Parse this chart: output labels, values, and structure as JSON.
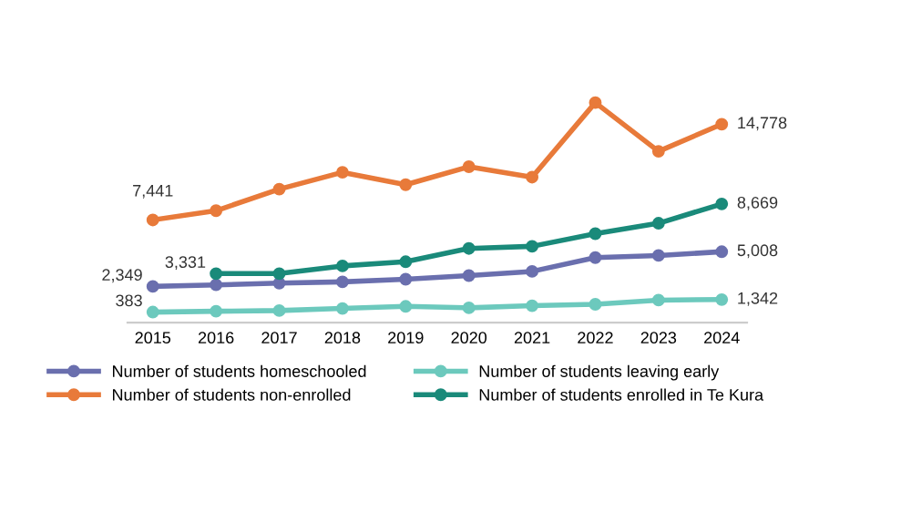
{
  "chart_data": {
    "type": "line",
    "categories": [
      "2015",
      "2016",
      "2017",
      "2018",
      "2019",
      "2020",
      "2021",
      "2022",
      "2023",
      "2024"
    ],
    "series": [
      {
        "name": "Number of students homeschooled",
        "color": "#6a6fae",
        "values": [
          2349,
          2470,
          2600,
          2700,
          2900,
          3180,
          3500,
          4560,
          4720,
          5008
        ],
        "value_labels": [
          "2,349",
          null,
          null,
          null,
          null,
          null,
          null,
          null,
          null,
          "5,008"
        ]
      },
      {
        "name": "Number of students non-enrolled",
        "color": "#e87a3a",
        "values": [
          7441,
          8150,
          9800,
          11090,
          10140,
          11520,
          10720,
          16430,
          12700,
          14778
        ],
        "value_labels": [
          "7,441",
          null,
          null,
          null,
          null,
          null,
          null,
          null,
          null,
          "14,778"
        ]
      },
      {
        "name": "Number of students leaving early",
        "color": "#6cc9bd",
        "values": [
          383,
          450,
          500,
          660,
          820,
          710,
          870,
          980,
          1300,
          1342
        ],
        "value_labels": [
          "383",
          null,
          null,
          null,
          null,
          null,
          null,
          null,
          null,
          "1,342"
        ]
      },
      {
        "name": "Number of students enrolled in Te Kura",
        "color": "#1a8a7a",
        "values": [
          null,
          3331,
          3330,
          3920,
          4240,
          5260,
          5420,
          6390,
          7190,
          8669
        ],
        "value_labels": [
          null,
          "3,331",
          null,
          null,
          null,
          null,
          null,
          null,
          null,
          "8,669"
        ]
      }
    ],
    "tick_labels": "x",
    "marker": "circle",
    "line_style": "solid",
    "grid": false,
    "legend": "bottom"
  }
}
